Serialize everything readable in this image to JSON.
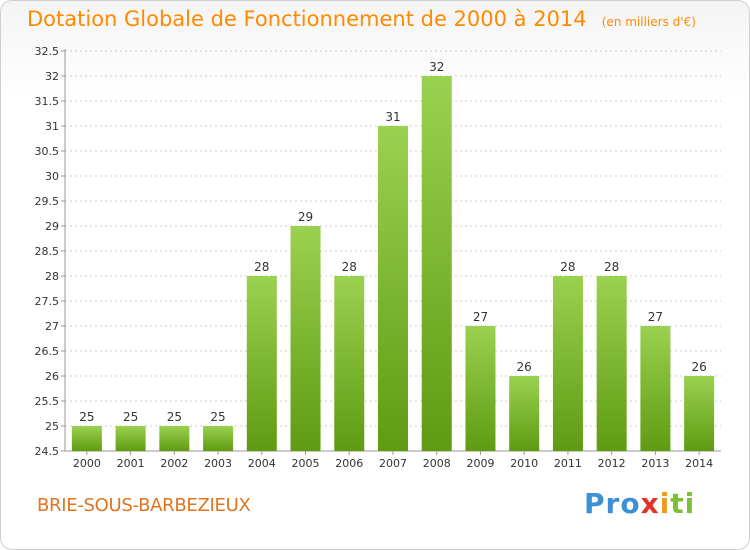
{
  "header": {
    "title": "Dotation Globale de Fonctionnement de 2000 à 2014",
    "unit": "(en milliers d'€)"
  },
  "footer": {
    "commune": "BRIE-SOUS-BARBEZIEUX",
    "logo_parts": [
      "Pro",
      "x",
      "i",
      "ti"
    ]
  },
  "colors": {
    "bar_top": "#9bd150",
    "bar_bottom": "#5f9b12",
    "title": "#ff8a00",
    "grid": "#cccccc"
  },
  "chart_data": {
    "type": "bar",
    "title": "Dotation Globale de Fonctionnement de 2000 à 2014",
    "unit": "(en milliers d'€)",
    "xlabel": "",
    "ylabel": "",
    "categories": [
      "2000",
      "2001",
      "2002",
      "2003",
      "2004",
      "2005",
      "2006",
      "2007",
      "2008",
      "2009",
      "2010",
      "2011",
      "2012",
      "2013",
      "2014"
    ],
    "values": [
      25,
      25,
      25,
      25,
      28,
      29,
      28,
      31,
      32,
      27,
      26,
      28,
      28,
      27,
      26
    ],
    "ylim": [
      24.5,
      32.5
    ],
    "yticks": [
      "24.5",
      "25",
      "25.5",
      "26",
      "26.5",
      "27",
      "27.5",
      "28",
      "28.5",
      "29",
      "29.5",
      "30",
      "30.5",
      "31",
      "31.5",
      "32",
      "32.5"
    ],
    "grid": true
  }
}
